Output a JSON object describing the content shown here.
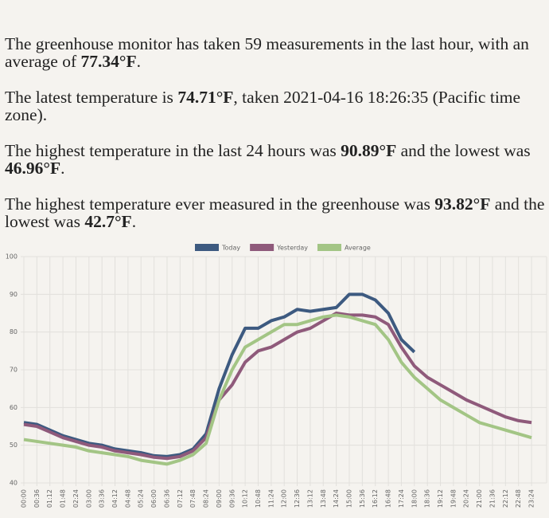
{
  "paragraphs": [
    [
      "The greenhouse monitor has taken 59 measurements in the last hour, with an average of ",
      "77.34°F",
      "."
    ],
    [
      "The latest temperature is ",
      "74.71°F",
      ", taken 2021-04-16 18:26:35 (Pacific time zone)."
    ],
    [
      "The highest temperature in the last 24 hours was ",
      "90.89°F",
      " and the lowest was ",
      "46.96°F",
      "."
    ],
    [
      "The highest temperature ever measured in the greenhouse was ",
      "93.82°F",
      " and the lowest was ",
      "42.7°F",
      "."
    ]
  ],
  "chart_data": {
    "type": "line",
    "categories": [
      "00:00",
      "00:36",
      "01:12",
      "01:48",
      "02:24",
      "03:00",
      "03:36",
      "04:12",
      "04:48",
      "05:24",
      "06:00",
      "06:36",
      "07:12",
      "07:48",
      "08:24",
      "09:00",
      "09:36",
      "10:12",
      "10:48",
      "11:24",
      "12:00",
      "12:36",
      "13:12",
      "13:48",
      "14:24",
      "15:00",
      "15:36",
      "16:12",
      "16:48",
      "17:24",
      "18:00",
      "18:36",
      "19:12",
      "19:48",
      "20:24",
      "21:00",
      "21:36",
      "22:12",
      "22:48",
      "23:24"
    ],
    "series": [
      {
        "name": "Today",
        "color": "#3d5a80",
        "values": [
          56,
          55.5,
          54,
          52.5,
          51.5,
          50.5,
          50,
          49,
          48.5,
          48,
          47.2,
          47,
          47.5,
          49,
          53,
          65,
          74,
          81,
          81,
          83,
          84,
          86,
          85.5,
          86,
          86.5,
          90,
          90,
          88.5,
          85,
          78,
          74.7,
          null,
          null,
          null,
          null,
          null,
          null,
          null,
          null,
          null
        ]
      },
      {
        "name": "Yesterday",
        "color": "#8f5a7b",
        "values": [
          55.5,
          55,
          53.5,
          52,
          51,
          50,
          49.5,
          48.5,
          48,
          47.5,
          46.8,
          46.5,
          47,
          48.5,
          52,
          62,
          66,
          72,
          75,
          76,
          78,
          80,
          81,
          83,
          85,
          84.5,
          84.5,
          84,
          82,
          76,
          71,
          68,
          66,
          64,
          62,
          60.5,
          59,
          57.5,
          56.5,
          56
        ]
      },
      {
        "name": "Average",
        "color": "#a3c585",
        "values": [
          51.5,
          51,
          50.5,
          50,
          49.5,
          48.5,
          48,
          47.5,
          47,
          46,
          45.5,
          45,
          46,
          47.5,
          50.5,
          62,
          70,
          76,
          78,
          80,
          82,
          82,
          83,
          84,
          84.5,
          84,
          83,
          82,
          78,
          72,
          68,
          65,
          62,
          60,
          58,
          56,
          55,
          54,
          53,
          52
        ]
      }
    ],
    "ylim": [
      40,
      100
    ],
    "yticks": [
      40,
      50,
      60,
      70,
      80,
      90,
      100
    ],
    "grid": true
  }
}
